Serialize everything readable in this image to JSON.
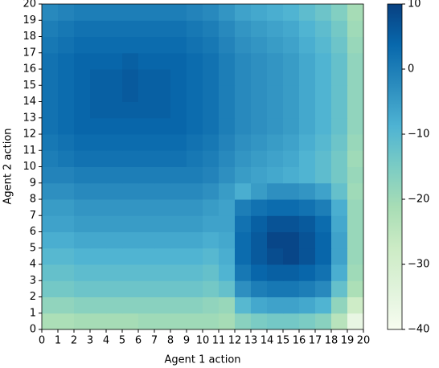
{
  "chart_data": {
    "type": "heatmap",
    "xlabel": "Agent 1 action",
    "ylabel": "Agent 2 action",
    "xlim": [
      0,
      20
    ],
    "ylim": [
      0,
      20
    ],
    "xticks": [
      0,
      1,
      2,
      3,
      4,
      5,
      6,
      7,
      8,
      9,
      10,
      11,
      12,
      13,
      14,
      15,
      16,
      17,
      18,
      19,
      20
    ],
    "yticks": [
      0,
      1,
      2,
      3,
      4,
      5,
      6,
      7,
      8,
      9,
      10,
      11,
      12,
      13,
      14,
      15,
      16,
      17,
      18,
      19,
      20
    ],
    "clim": [
      -40,
      10
    ],
    "cticks": [
      {
        "value": -40,
        "label": "−40"
      },
      {
        "value": -30,
        "label": "−30"
      },
      {
        "value": -20,
        "label": "−20"
      },
      {
        "value": -10,
        "label": "−10"
      },
      0,
      10
    ],
    "colors": [
      "#f7fcf0",
      "#e0f3db",
      "#ccebc5",
      "#a8ddb5",
      "#7bccc4",
      "#4eb3d3",
      "#2b8cbe",
      "#0868ac",
      "#084081"
    ],
    "z": [
      [
        -22,
        -22,
        -21,
        -21,
        -21,
        -21,
        -20,
        -20,
        -20,
        -20,
        -20,
        -21,
        -17,
        -15,
        -14,
        -14,
        -15,
        -17,
        -24,
        -36
      ],
      [
        -18,
        -18,
        -17,
        -17,
        -17,
        -17,
        -17,
        -17,
        -17,
        -17,
        -18,
        -19,
        -10,
        -7,
        -6,
        -6,
        -7,
        -9,
        -18,
        -28
      ],
      [
        -14,
        -14,
        -13,
        -13,
        -13,
        -13,
        -13,
        -13,
        -13,
        -13,
        -14,
        -12,
        -3,
        0,
        1,
        1,
        0,
        -2,
        -12,
        -22
      ],
      [
        -12,
        -12,
        -11,
        -11,
        -11,
        -11,
        -11,
        -11,
        -11,
        -11,
        -12,
        -9,
        1,
        4,
        5,
        5,
        4,
        2,
        -8,
        -20
      ],
      [
        -10,
        -10,
        -9,
        -9,
        -9,
        -9,
        -9,
        -9,
        -9,
        -9,
        -10,
        -8,
        3,
        6,
        8,
        9,
        7,
        4,
        -6,
        -19
      ],
      [
        -8,
        -8,
        -7,
        -7,
        -7,
        -7,
        -7,
        -7,
        -7,
        -7,
        -8,
        -7,
        3,
        6,
        9,
        9,
        7,
        4,
        -6,
        -19
      ],
      [
        -6,
        -6,
        -5,
        -5,
        -5,
        -5,
        -5,
        -5,
        -5,
        -5,
        -6,
        -6,
        2,
        5,
        7,
        7,
        6,
        3,
        -7,
        -19
      ],
      [
        -5,
        -5,
        -4,
        -4,
        -4,
        -4,
        -4,
        -4,
        -4,
        -4,
        -5,
        -6,
        0,
        2,
        3,
        3,
        2,
        0,
        -8,
        -19
      ],
      [
        -3,
        -3,
        -2,
        -2,
        -2,
        -2,
        -2,
        -2,
        -2,
        -2,
        -3,
        -5,
        -8,
        -5,
        -3,
        -3,
        -4,
        -6,
        -12,
        -20
      ],
      [
        -1,
        -1,
        0,
        0,
        0,
        0,
        0,
        0,
        0,
        0,
        -1,
        -3,
        -5,
        -6,
        -7,
        -8,
        -9,
        -11,
        -14,
        -19
      ],
      [
        0,
        1,
        2,
        2,
        2,
        2,
        2,
        2,
        2,
        1,
        0,
        -2,
        -4,
        -5,
        -6,
        -7,
        -9,
        -11,
        -14,
        -20
      ],
      [
        1,
        2,
        3,
        3,
        3,
        3,
        3,
        3,
        3,
        2,
        1,
        -1,
        -3,
        -4,
        -5,
        -6,
        -8,
        -10,
        -13,
        -19
      ],
      [
        2,
        3,
        4,
        4,
        4,
        4,
        4,
        4,
        4,
        3,
        2,
        0,
        -2,
        -3,
        -4,
        -5,
        -7,
        -9,
        -12,
        -18
      ],
      [
        2,
        3,
        4,
        5,
        5,
        5,
        5,
        5,
        4,
        3,
        2,
        0,
        -2,
        -3,
        -4,
        -5,
        -7,
        -9,
        -12,
        -18
      ],
      [
        2,
        3,
        4,
        5,
        5,
        6,
        5,
        5,
        4,
        3,
        2,
        0,
        -2,
        -3,
        -4,
        -5,
        -7,
        -9,
        -12,
        -18
      ],
      [
        2,
        3,
        4,
        5,
        5,
        6,
        5,
        5,
        4,
        3,
        2,
        0,
        -2,
        -3,
        -4,
        -5,
        -7,
        -9,
        -12,
        -18
      ],
      [
        2,
        3,
        4,
        4,
        4,
        5,
        4,
        4,
        4,
        3,
        2,
        0,
        -2,
        -3,
        -4,
        -5,
        -7,
        -9,
        -12,
        -18
      ],
      [
        1,
        2,
        3,
        3,
        3,
        3,
        3,
        3,
        3,
        2,
        1,
        -1,
        -3,
        -4,
        -5,
        -6,
        -8,
        -10,
        -13,
        -19
      ],
      [
        0,
        1,
        2,
        2,
        2,
        2,
        2,
        2,
        2,
        1,
        0,
        -2,
        -4,
        -5,
        -6,
        -7,
        -9,
        -11,
        -14,
        -20
      ],
      [
        -2,
        -1,
        0,
        0,
        0,
        0,
        0,
        0,
        0,
        -1,
        -2,
        -4,
        -6,
        -7,
        -8,
        -9,
        -11,
        -13,
        -16,
        -21
      ]
    ]
  }
}
